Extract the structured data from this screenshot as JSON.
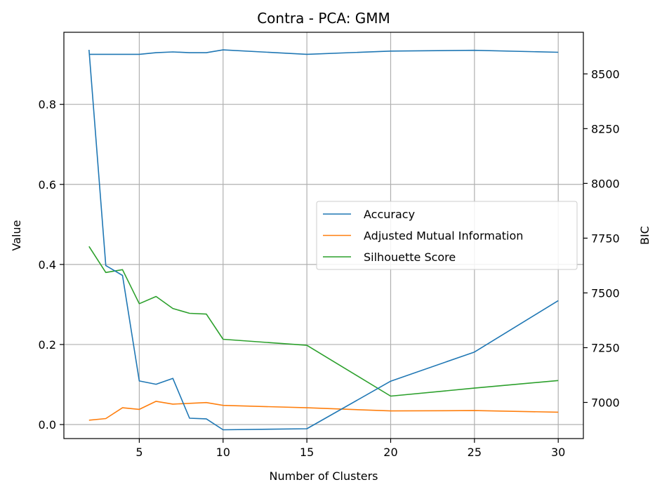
{
  "chart_data": {
    "type": "line",
    "title": "Contra - PCA: GMM",
    "xlabel": "Number of Clusters",
    "ylabel": "Value",
    "y2label": "BIC",
    "xlim": [
      0.5,
      31.5
    ],
    "ylim": [
      -0.035,
      0.98
    ],
    "y2lim": [
      6835,
      8690
    ],
    "xticks": [
      5,
      10,
      15,
      20,
      25,
      30
    ],
    "yticks": [
      0.0,
      0.2,
      0.4,
      0.6,
      0.8
    ],
    "y2ticks": [
      7000,
      7250,
      7500,
      7750,
      8000,
      8250,
      8500
    ],
    "grid": true,
    "legend_position": "center-right",
    "x": [
      2,
      3,
      4,
      5,
      6,
      7,
      8,
      9,
      10,
      15,
      20,
      25,
      30
    ],
    "series": [
      {
        "name": "Accuracy",
        "axis": "left",
        "color": "#1f77b4",
        "values": [
          0.925,
          0.925,
          0.925,
          0.925,
          0.929,
          0.931,
          0.929,
          0.929,
          0.936,
          0.925,
          0.933,
          0.935,
          0.93
        ]
      },
      {
        "name": "Adjusted Mutual Information",
        "axis": "left",
        "color": "#ff7f0e",
        "values": [
          0.011,
          0.015,
          0.042,
          0.038,
          0.058,
          0.051,
          0.053,
          0.055,
          0.048,
          0.042,
          0.034,
          0.035,
          0.031
        ]
      },
      {
        "name": "Silhouette Score",
        "axis": "left",
        "color": "#2ca02c",
        "values": [
          0.445,
          0.38,
          0.387,
          0.302,
          0.32,
          0.29,
          0.278,
          0.276,
          0.213,
          0.198,
          0.071,
          0.091,
          0.11
        ]
      },
      {
        "name": "BIC",
        "axis": "right",
        "color": "#1f77b4",
        "in_legend": false,
        "values": [
          8610,
          7625,
          7580,
          7098,
          7083,
          7110,
          6928,
          6925,
          6875,
          6880,
          7097,
          7230,
          7465
        ]
      }
    ]
  }
}
